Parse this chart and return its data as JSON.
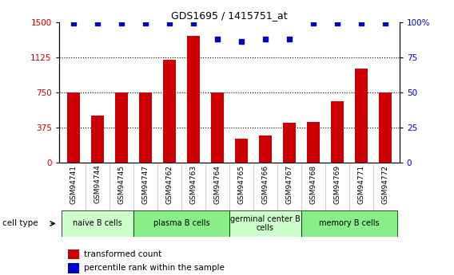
{
  "title": "GDS1695 / 1415751_at",
  "samples": [
    "GSM94741",
    "GSM94744",
    "GSM94745",
    "GSM94747",
    "GSM94762",
    "GSM94763",
    "GSM94764",
    "GSM94765",
    "GSM94766",
    "GSM94767",
    "GSM94768",
    "GSM94769",
    "GSM94771",
    "GSM94772"
  ],
  "bar_values": [
    750,
    500,
    750,
    750,
    1100,
    1350,
    750,
    250,
    290,
    420,
    430,
    650,
    1000,
    750
  ],
  "percentile_values": [
    99,
    99,
    99,
    99,
    99,
    99,
    88,
    86,
    88,
    88,
    99,
    99,
    99,
    99
  ],
  "bar_color": "#cc0000",
  "dot_color": "#0000cc",
  "ylim_left": [
    0,
    1500
  ],
  "ylim_right": [
    0,
    100
  ],
  "yticks_left": [
    0,
    375,
    750,
    1125,
    1500
  ],
  "yticks_right": [
    0,
    25,
    50,
    75,
    100
  ],
  "grid_values": [
    375,
    750,
    1125
  ],
  "cell_types": [
    {
      "label": "naive B cells",
      "start": 0,
      "end": 3,
      "color": "#ccffcc"
    },
    {
      "label": "plasma B cells",
      "start": 3,
      "end": 7,
      "color": "#88ee88"
    },
    {
      "label": "germinal center B\ncells",
      "start": 7,
      "end": 10,
      "color": "#ccffcc"
    },
    {
      "label": "memory B cells",
      "start": 10,
      "end": 14,
      "color": "#88ee88"
    }
  ],
  "legend_bar_label": "transformed count",
  "legend_dot_label": "percentile rank within the sample",
  "cell_type_label": "cell type"
}
